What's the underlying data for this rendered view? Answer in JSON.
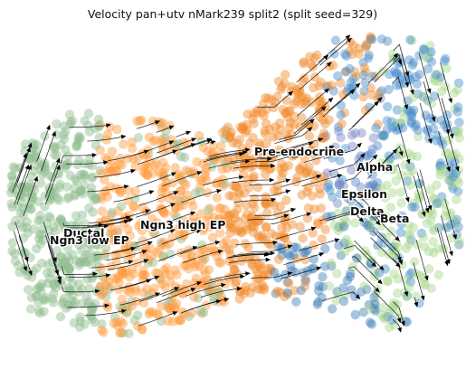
{
  "chart_data": {
    "type": "scatter",
    "title": "Velocity pan+utv nMark239 split2 (split seed=329)",
    "xlabel": "",
    "ylabel": "",
    "axes_visible": false,
    "overlay": "velocity streamlines with arrowheads",
    "point_style": "translucent circles",
    "clusters": [
      {
        "name": "Ductal",
        "color": "#8fbc8f"
      },
      {
        "name": "Ngn3 low EP",
        "color": "#8fbc8f"
      },
      {
        "name": "Ngn3 high EP",
        "color": "#ff9a3c"
      },
      {
        "name": "Pre-endocrine",
        "color": "#f28a2a"
      },
      {
        "name": "Alpha",
        "color": "#4a8fc9"
      },
      {
        "name": "Epsilon",
        "color": "#3f7fb8"
      },
      {
        "name": "Delta",
        "color": "#7a86c4"
      },
      {
        "name": "Beta",
        "color": "#a8d88a"
      }
    ]
  }
}
